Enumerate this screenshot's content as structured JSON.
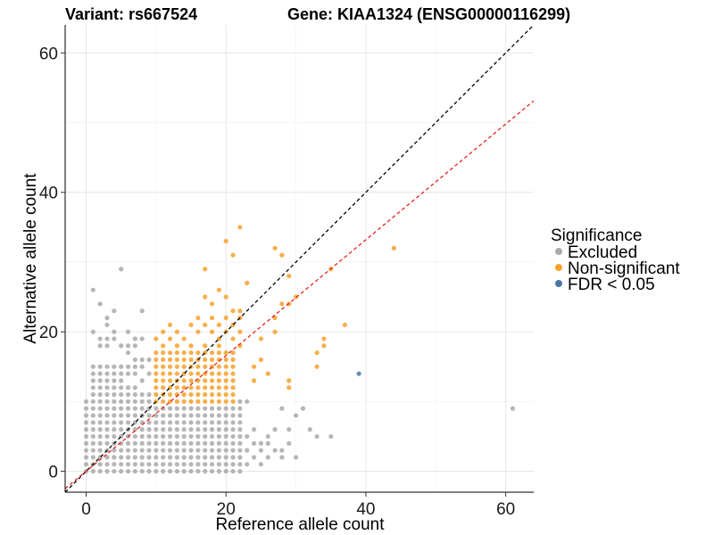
{
  "chart_data": {
    "type": "scatter",
    "title_left": "Variant: rs667524",
    "title_right": "Gene: KIAA1324 (ENSG00000116299)",
    "xlabel": "Reference allele count",
    "ylabel": "Alternative allele count",
    "xlim": [
      -3,
      64
    ],
    "ylim": [
      -3,
      64
    ],
    "x_ticks": [
      0,
      20,
      40,
      60
    ],
    "y_ticks": [
      0,
      20,
      40,
      60
    ],
    "grid": true,
    "legend": {
      "title": "Significance",
      "placement": "right",
      "entries": [
        "Excluded",
        "Non-significant",
        "FDR < 0.05"
      ]
    },
    "colors": {
      "Excluded": "#a9a9a9",
      "Non-significant": "#f5a12b",
      "FDR < 0.05": "#4a78a5",
      "identity_line": "#000000",
      "fit_line": "#e8211f"
    },
    "reference_lines": [
      {
        "kind": "identity",
        "slope": 1,
        "intercept": 0
      },
      {
        "kind": "fit",
        "slope": 0.83,
        "intercept": 0
      }
    ],
    "series": [
      {
        "name": "Excluded",
        "grid_blocks": [
          {
            "x": [
              0,
              9
            ],
            "y": [
              0,
              10
            ]
          },
          {
            "x": [
              10,
              22
            ],
            "y": [
              0,
              9
            ]
          },
          {
            "x": [
              1,
              5
            ],
            "y": [
              11,
              15
            ]
          }
        ],
        "points": [
          [
            1,
            26
          ],
          [
            5,
            29
          ],
          [
            2,
            24
          ],
          [
            3,
            22
          ],
          [
            4,
            23
          ],
          [
            3,
            21
          ],
          [
            8,
            23
          ],
          [
            4,
            20
          ],
          [
            1,
            20
          ],
          [
            2,
            19
          ],
          [
            3,
            19
          ],
          [
            4,
            19
          ],
          [
            6,
            20
          ],
          [
            7,
            19
          ],
          [
            8,
            19
          ],
          [
            2,
            18
          ],
          [
            3,
            18
          ],
          [
            5,
            18
          ],
          [
            6,
            18
          ],
          [
            7,
            18
          ],
          [
            6,
            17
          ],
          [
            7,
            16
          ],
          [
            8,
            16
          ],
          [
            9,
            16
          ],
          [
            6,
            15
          ],
          [
            7,
            15
          ],
          [
            8,
            15
          ],
          [
            9,
            14
          ],
          [
            6,
            14
          ],
          [
            7,
            14
          ],
          [
            8,
            13
          ],
          [
            6,
            12
          ],
          [
            7,
            12
          ],
          [
            8,
            11
          ],
          [
            9,
            11
          ],
          [
            6,
            11
          ],
          [
            7,
            11
          ],
          [
            23,
            1
          ],
          [
            24,
            2
          ],
          [
            25,
            3
          ],
          [
            26,
            5
          ],
          [
            27,
            6
          ],
          [
            28,
            2
          ],
          [
            29,
            4
          ],
          [
            30,
            2
          ],
          [
            31,
            9
          ],
          [
            32,
            6
          ],
          [
            33,
            5
          ],
          [
            35,
            5
          ],
          [
            25,
            1
          ],
          [
            26,
            2
          ],
          [
            27,
            3
          ],
          [
            28,
            3
          ],
          [
            23,
            3
          ],
          [
            24,
            4
          ],
          [
            25,
            4
          ],
          [
            23,
            5
          ],
          [
            24,
            6
          ],
          [
            26,
            4
          ],
          [
            29,
            6
          ],
          [
            30,
            8
          ],
          [
            28,
            9
          ],
          [
            22,
            10
          ],
          [
            23,
            10
          ],
          [
            61,
            9
          ]
        ]
      },
      {
        "name": "Non-significant",
        "grid_blocks": [
          {
            "x": [
              10,
              21
            ],
            "y": [
              10,
              17
            ]
          }
        ],
        "points": [
          [
            22,
            35
          ],
          [
            20,
            33
          ],
          [
            21,
            31
          ],
          [
            27,
            32
          ],
          [
            44,
            32
          ],
          [
            17,
            29
          ],
          [
            28,
            31
          ],
          [
            19,
            26
          ],
          [
            23,
            27
          ],
          [
            29,
            28
          ],
          [
            17,
            25
          ],
          [
            20,
            25
          ],
          [
            29,
            24
          ],
          [
            18,
            24
          ],
          [
            21,
            23
          ],
          [
            22,
            23
          ],
          [
            28,
            24
          ],
          [
            30,
            25
          ],
          [
            16,
            22
          ],
          [
            18,
            22
          ],
          [
            20,
            22
          ],
          [
            22,
            22
          ],
          [
            27,
            22
          ],
          [
            12,
            21
          ],
          [
            15,
            21
          ],
          [
            17,
            21
          ],
          [
            19,
            21
          ],
          [
            21,
            21
          ],
          [
            11,
            20
          ],
          [
            13,
            20
          ],
          [
            16,
            20
          ],
          [
            18,
            20
          ],
          [
            20,
            20
          ],
          [
            22,
            20
          ],
          [
            10,
            19
          ],
          [
            12,
            19
          ],
          [
            14,
            19
          ],
          [
            19,
            19
          ],
          [
            21,
            19
          ],
          [
            11,
            18
          ],
          [
            13,
            18
          ],
          [
            15,
            18
          ],
          [
            17,
            18
          ],
          [
            19,
            18
          ],
          [
            22,
            18
          ],
          [
            37,
            21
          ],
          [
            34,
            19
          ],
          [
            33,
            17
          ],
          [
            34,
            18
          ],
          [
            33,
            15
          ],
          [
            29,
            13
          ],
          [
            29,
            12
          ],
          [
            24,
            15
          ],
          [
            25,
            16
          ],
          [
            26,
            14
          ],
          [
            24,
            13
          ],
          [
            35,
            29
          ],
          [
            27,
            20
          ],
          [
            25,
            19
          ]
        ]
      },
      {
        "name": "FDR < 0.05",
        "points": [
          [
            39,
            14
          ]
        ]
      }
    ]
  }
}
